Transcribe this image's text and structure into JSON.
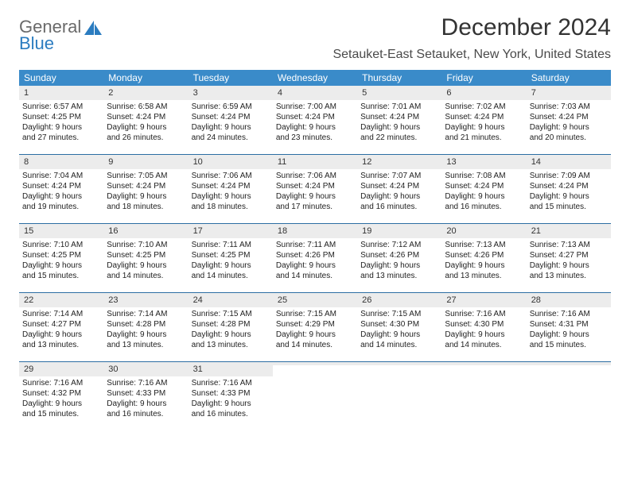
{
  "logo": {
    "word1": "General",
    "word2": "Blue"
  },
  "title": "December 2024",
  "location": "Setauket-East Setauket, New York, United States",
  "colors": {
    "header_bg": "#3a8bc9",
    "header_text": "#ffffff",
    "daynum_bg": "#ececec",
    "rule": "#2c6ea3",
    "logo_gray": "#6a6a6a",
    "logo_blue": "#2b7cc0",
    "title_color": "#333333",
    "body_text": "#222222"
  },
  "days_of_week": [
    "Sunday",
    "Monday",
    "Tuesday",
    "Wednesday",
    "Thursday",
    "Friday",
    "Saturday"
  ],
  "weeks": [
    [
      {
        "n": "1",
        "sr": "Sunrise: 6:57 AM",
        "ss": "Sunset: 4:25 PM",
        "d1": "Daylight: 9 hours",
        "d2": "and 27 minutes."
      },
      {
        "n": "2",
        "sr": "Sunrise: 6:58 AM",
        "ss": "Sunset: 4:24 PM",
        "d1": "Daylight: 9 hours",
        "d2": "and 26 minutes."
      },
      {
        "n": "3",
        "sr": "Sunrise: 6:59 AM",
        "ss": "Sunset: 4:24 PM",
        "d1": "Daylight: 9 hours",
        "d2": "and 24 minutes."
      },
      {
        "n": "4",
        "sr": "Sunrise: 7:00 AM",
        "ss": "Sunset: 4:24 PM",
        "d1": "Daylight: 9 hours",
        "d2": "and 23 minutes."
      },
      {
        "n": "5",
        "sr": "Sunrise: 7:01 AM",
        "ss": "Sunset: 4:24 PM",
        "d1": "Daylight: 9 hours",
        "d2": "and 22 minutes."
      },
      {
        "n": "6",
        "sr": "Sunrise: 7:02 AM",
        "ss": "Sunset: 4:24 PM",
        "d1": "Daylight: 9 hours",
        "d2": "and 21 minutes."
      },
      {
        "n": "7",
        "sr": "Sunrise: 7:03 AM",
        "ss": "Sunset: 4:24 PM",
        "d1": "Daylight: 9 hours",
        "d2": "and 20 minutes."
      }
    ],
    [
      {
        "n": "8",
        "sr": "Sunrise: 7:04 AM",
        "ss": "Sunset: 4:24 PM",
        "d1": "Daylight: 9 hours",
        "d2": "and 19 minutes."
      },
      {
        "n": "9",
        "sr": "Sunrise: 7:05 AM",
        "ss": "Sunset: 4:24 PM",
        "d1": "Daylight: 9 hours",
        "d2": "and 18 minutes."
      },
      {
        "n": "10",
        "sr": "Sunrise: 7:06 AM",
        "ss": "Sunset: 4:24 PM",
        "d1": "Daylight: 9 hours",
        "d2": "and 18 minutes."
      },
      {
        "n": "11",
        "sr": "Sunrise: 7:06 AM",
        "ss": "Sunset: 4:24 PM",
        "d1": "Daylight: 9 hours",
        "d2": "and 17 minutes."
      },
      {
        "n": "12",
        "sr": "Sunrise: 7:07 AM",
        "ss": "Sunset: 4:24 PM",
        "d1": "Daylight: 9 hours",
        "d2": "and 16 minutes."
      },
      {
        "n": "13",
        "sr": "Sunrise: 7:08 AM",
        "ss": "Sunset: 4:24 PM",
        "d1": "Daylight: 9 hours",
        "d2": "and 16 minutes."
      },
      {
        "n": "14",
        "sr": "Sunrise: 7:09 AM",
        "ss": "Sunset: 4:24 PM",
        "d1": "Daylight: 9 hours",
        "d2": "and 15 minutes."
      }
    ],
    [
      {
        "n": "15",
        "sr": "Sunrise: 7:10 AM",
        "ss": "Sunset: 4:25 PM",
        "d1": "Daylight: 9 hours",
        "d2": "and 15 minutes."
      },
      {
        "n": "16",
        "sr": "Sunrise: 7:10 AM",
        "ss": "Sunset: 4:25 PM",
        "d1": "Daylight: 9 hours",
        "d2": "and 14 minutes."
      },
      {
        "n": "17",
        "sr": "Sunrise: 7:11 AM",
        "ss": "Sunset: 4:25 PM",
        "d1": "Daylight: 9 hours",
        "d2": "and 14 minutes."
      },
      {
        "n": "18",
        "sr": "Sunrise: 7:11 AM",
        "ss": "Sunset: 4:26 PM",
        "d1": "Daylight: 9 hours",
        "d2": "and 14 minutes."
      },
      {
        "n": "19",
        "sr": "Sunrise: 7:12 AM",
        "ss": "Sunset: 4:26 PM",
        "d1": "Daylight: 9 hours",
        "d2": "and 13 minutes."
      },
      {
        "n": "20",
        "sr": "Sunrise: 7:13 AM",
        "ss": "Sunset: 4:26 PM",
        "d1": "Daylight: 9 hours",
        "d2": "and 13 minutes."
      },
      {
        "n": "21",
        "sr": "Sunrise: 7:13 AM",
        "ss": "Sunset: 4:27 PM",
        "d1": "Daylight: 9 hours",
        "d2": "and 13 minutes."
      }
    ],
    [
      {
        "n": "22",
        "sr": "Sunrise: 7:14 AM",
        "ss": "Sunset: 4:27 PM",
        "d1": "Daylight: 9 hours",
        "d2": "and 13 minutes."
      },
      {
        "n": "23",
        "sr": "Sunrise: 7:14 AM",
        "ss": "Sunset: 4:28 PM",
        "d1": "Daylight: 9 hours",
        "d2": "and 13 minutes."
      },
      {
        "n": "24",
        "sr": "Sunrise: 7:15 AM",
        "ss": "Sunset: 4:28 PM",
        "d1": "Daylight: 9 hours",
        "d2": "and 13 minutes."
      },
      {
        "n": "25",
        "sr": "Sunrise: 7:15 AM",
        "ss": "Sunset: 4:29 PM",
        "d1": "Daylight: 9 hours",
        "d2": "and 14 minutes."
      },
      {
        "n": "26",
        "sr": "Sunrise: 7:15 AM",
        "ss": "Sunset: 4:30 PM",
        "d1": "Daylight: 9 hours",
        "d2": "and 14 minutes."
      },
      {
        "n": "27",
        "sr": "Sunrise: 7:16 AM",
        "ss": "Sunset: 4:30 PM",
        "d1": "Daylight: 9 hours",
        "d2": "and 14 minutes."
      },
      {
        "n": "28",
        "sr": "Sunrise: 7:16 AM",
        "ss": "Sunset: 4:31 PM",
        "d1": "Daylight: 9 hours",
        "d2": "and 15 minutes."
      }
    ],
    [
      {
        "n": "29",
        "sr": "Sunrise: 7:16 AM",
        "ss": "Sunset: 4:32 PM",
        "d1": "Daylight: 9 hours",
        "d2": "and 15 minutes."
      },
      {
        "n": "30",
        "sr": "Sunrise: 7:16 AM",
        "ss": "Sunset: 4:33 PM",
        "d1": "Daylight: 9 hours",
        "d2": "and 16 minutes."
      },
      {
        "n": "31",
        "sr": "Sunrise: 7:16 AM",
        "ss": "Sunset: 4:33 PM",
        "d1": "Daylight: 9 hours",
        "d2": "and 16 minutes."
      },
      {
        "n": "",
        "sr": "",
        "ss": "",
        "d1": "",
        "d2": ""
      },
      {
        "n": "",
        "sr": "",
        "ss": "",
        "d1": "",
        "d2": ""
      },
      {
        "n": "",
        "sr": "",
        "ss": "",
        "d1": "",
        "d2": ""
      },
      {
        "n": "",
        "sr": "",
        "ss": "",
        "d1": "",
        "d2": ""
      }
    ]
  ]
}
